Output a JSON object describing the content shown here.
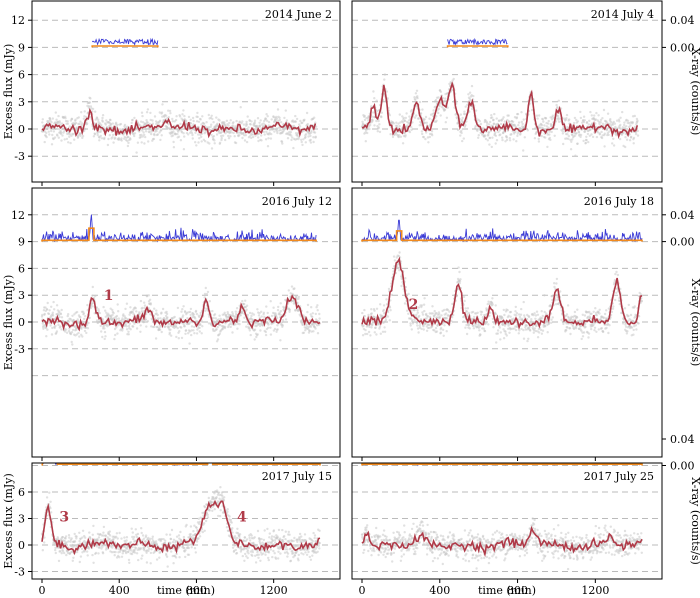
{
  "chart_data": {
    "type": "line",
    "xlabel": "time (min)",
    "ylabel_left": "Excess flux (mJy)",
    "ylabel_right": "X-ray (counts/s)",
    "x_ticks": [
      0,
      400,
      800,
      1200
    ],
    "y_ticks_left": [
      -3,
      0,
      3,
      6,
      9,
      12
    ],
    "y_ticks_right": [
      "0.00",
      "0.04"
    ],
    "xlim": [
      -80,
      1500
    ],
    "ylim": [
      -7.5,
      14.7
    ],
    "panels": [
      {
        "title": "2014 June 2",
        "xray_range": [
          260,
          600
        ],
        "flares": [
          {
            "t": 245,
            "a": 2.2,
            "w": 12
          },
          {
            "t": 640,
            "a": 1.0,
            "w": 20
          }
        ],
        "annotations": []
      },
      {
        "title": "2014 July 4",
        "xray_range": [
          440,
          750
        ],
        "flares": [
          {
            "t": 60,
            "a": 2.0,
            "w": 14
          },
          {
            "t": 115,
            "a": 4.6,
            "w": 14
          },
          {
            "t": 280,
            "a": 2.8,
            "w": 16
          },
          {
            "t": 400,
            "a": 3.5,
            "w": 22
          },
          {
            "t": 460,
            "a": 4.8,
            "w": 18
          },
          {
            "t": 560,
            "a": 3.0,
            "w": 16
          },
          {
            "t": 870,
            "a": 4.2,
            "w": 14
          },
          {
            "t": 1010,
            "a": 2.0,
            "w": 14
          }
        ],
        "annotations": []
      },
      {
        "title": "2016 July 12",
        "xray_range": [
          0,
          1420
        ],
        "xray_spike": {
          "t": 255,
          "rate": 0.045,
          "model": 0.02
        },
        "flares": [
          {
            "t": 262,
            "a": 2.8,
            "w": 14
          },
          {
            "t": 550,
            "a": 1.2,
            "w": 14
          },
          {
            "t": 850,
            "a": 2.8,
            "w": 14
          },
          {
            "t": 1040,
            "a": 1.4,
            "w": 16
          },
          {
            "t": 1300,
            "a": 3.0,
            "w": 30
          }
        ],
        "annotations": [
          {
            "label": "1",
            "t": 320,
            "y": 3.0
          }
        ]
      },
      {
        "title": "2016 July 18",
        "xray_range": [
          0,
          1440
        ],
        "xray_spike": {
          "t": 190,
          "rate": 0.04,
          "model": 0.016
        },
        "flares": [
          {
            "t": 185,
            "a": 7.2,
            "w": 32
          },
          {
            "t": 495,
            "a": 4.3,
            "w": 16
          },
          {
            "t": 660,
            "a": 2.0,
            "w": 14
          },
          {
            "t": 1000,
            "a": 3.2,
            "w": 18
          },
          {
            "t": 1310,
            "a": 4.8,
            "w": 20
          },
          {
            "t": 1435,
            "a": 3.0,
            "w": 10
          }
        ],
        "annotations": [
          {
            "label": "2",
            "t": 240,
            "y": 2.0
          }
        ]
      },
      {
        "title": "2017 July 15",
        "xray_range": [
          0,
          1440
        ],
        "xray_spike": {
          "t": 870,
          "rate": 0.04,
          "model": 0.02
        },
        "xray_spike2": {
          "t": 40,
          "rate": 0.02,
          "model": 0.017
        },
        "flares": [
          {
            "t": 30,
            "a": 4.3,
            "w": 16
          },
          {
            "t": 880,
            "a": 4.7,
            "w": 45
          },
          {
            "t": 940,
            "a": 2.2,
            "w": 25
          }
        ],
        "annotations": [
          {
            "label": "3",
            "t": 90,
            "y": 3.2
          },
          {
            "label": "4",
            "t": 1010,
            "y": 3.2
          }
        ]
      },
      {
        "title": "2017 July 25",
        "xray_range": [
          0,
          1440
        ],
        "flares": [
          {
            "t": 20,
            "a": 1.2,
            "w": 14
          },
          {
            "t": 310,
            "a": 1.0,
            "w": 14
          },
          {
            "t": 880,
            "a": 1.8,
            "w": 18
          },
          {
            "t": 1280,
            "a": 1.0,
            "w": 16
          }
        ],
        "annotations": []
      }
    ]
  }
}
